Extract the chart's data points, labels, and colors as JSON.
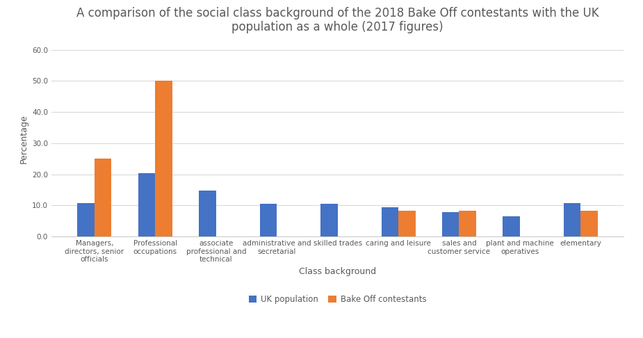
{
  "title": "A comparison of the social class background of the 2018 Bake Off contestants with the UK\npopulation as a whole (2017 figures)",
  "xlabel": "Class background",
  "ylabel": "Percentage",
  "categories": [
    "Managers,\ndirectors, senior\nofficials",
    "Professional\noccupations",
    "associate\nprofessional and\ntechnical",
    "administrative and\nsecretarial",
    "skilled trades",
    "caring and leisure",
    "sales and\ncustomer service",
    "plant and machine\noperatives",
    "elementary"
  ],
  "uk_population": [
    10.8,
    20.3,
    14.8,
    10.5,
    10.6,
    9.4,
    7.8,
    6.6,
    10.7
  ],
  "bake_off": [
    25.0,
    50.0,
    0,
    0,
    0,
    8.4,
    8.4,
    0,
    8.4
  ],
  "uk_color": "#4472C4",
  "bakeoff_color": "#ED7D31",
  "ylim": [
    0,
    63
  ],
  "yticks": [
    0.0,
    10.0,
    20.0,
    30.0,
    40.0,
    50.0,
    60.0
  ],
  "ytick_labels": [
    "0.0",
    "10.0",
    "20.0",
    "30.0",
    "40.0",
    "50.0",
    "60.0"
  ],
  "legend_labels": [
    "UK population",
    "Bake Off contestants"
  ],
  "bar_width": 0.28,
  "title_fontsize": 12,
  "axis_label_fontsize": 9,
  "tick_fontsize": 7.5,
  "legend_fontsize": 8.5,
  "background_color": "#FFFFFF",
  "grid_color": "#D9D9D9"
}
